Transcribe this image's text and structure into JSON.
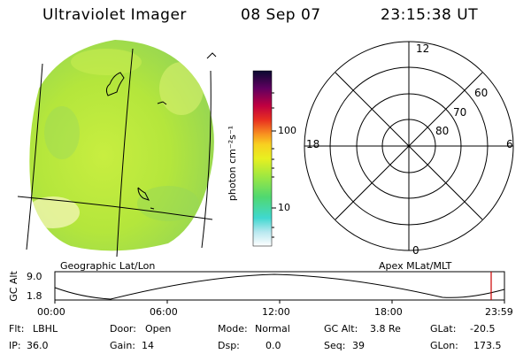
{
  "header": {
    "title": "Ultraviolet Imager",
    "date": "08 Sep 07",
    "time": "23:15:38 UT"
  },
  "colorbar": {
    "label": "photon cm⁻²s⁻¹",
    "ticks": [
      "100",
      "10"
    ],
    "tick_values": [
      100,
      10
    ]
  },
  "polar_plot": {
    "lat_labels": [
      "60",
      "70",
      "80"
    ],
    "mlt_labels": {
      "top": "12",
      "left": "18",
      "right": "6",
      "bottom": "0"
    }
  },
  "panel_labels": {
    "left": "Geographic Lat/Lon",
    "right": "Apex MLat/MLT"
  },
  "altitude_plot": {
    "ylabel": "GC Alt",
    "yticks": [
      "9.0",
      "1.8"
    ],
    "xticks": [
      "00:00",
      "06:00",
      "12:00",
      "18:00",
      "23:59"
    ],
    "current_time_marker_color": "#cc0000"
  },
  "footer": {
    "row1": [
      {
        "key": "Flt:",
        "value": "LBHL"
      },
      {
        "key": "Door:",
        "value": "Open"
      },
      {
        "key": "Mode:",
        "value": "Normal"
      },
      {
        "key": "GC Alt:",
        "value": "3.8 Re"
      },
      {
        "key": "GLat:",
        "value": "-20.5"
      }
    ],
    "row2": [
      {
        "key": "IP:",
        "value": "36.0"
      },
      {
        "key": "Gain:",
        "value": "14"
      },
      {
        "key": "Dsp:",
        "value": "0.0"
      },
      {
        "key": "Seq:",
        "value": "39"
      },
      {
        "key": "GLon:",
        "value": "173.5"
      }
    ]
  },
  "colors": {
    "globe_fill": "#b8e83a",
    "colorbar_stops": [
      "#ffffff",
      "#b0e8f0",
      "#30d8c8",
      "#60e070",
      "#c0f040",
      "#f0f020",
      "#f8a020",
      "#e83020",
      "#c00040",
      "#600060",
      "#101030"
    ]
  }
}
